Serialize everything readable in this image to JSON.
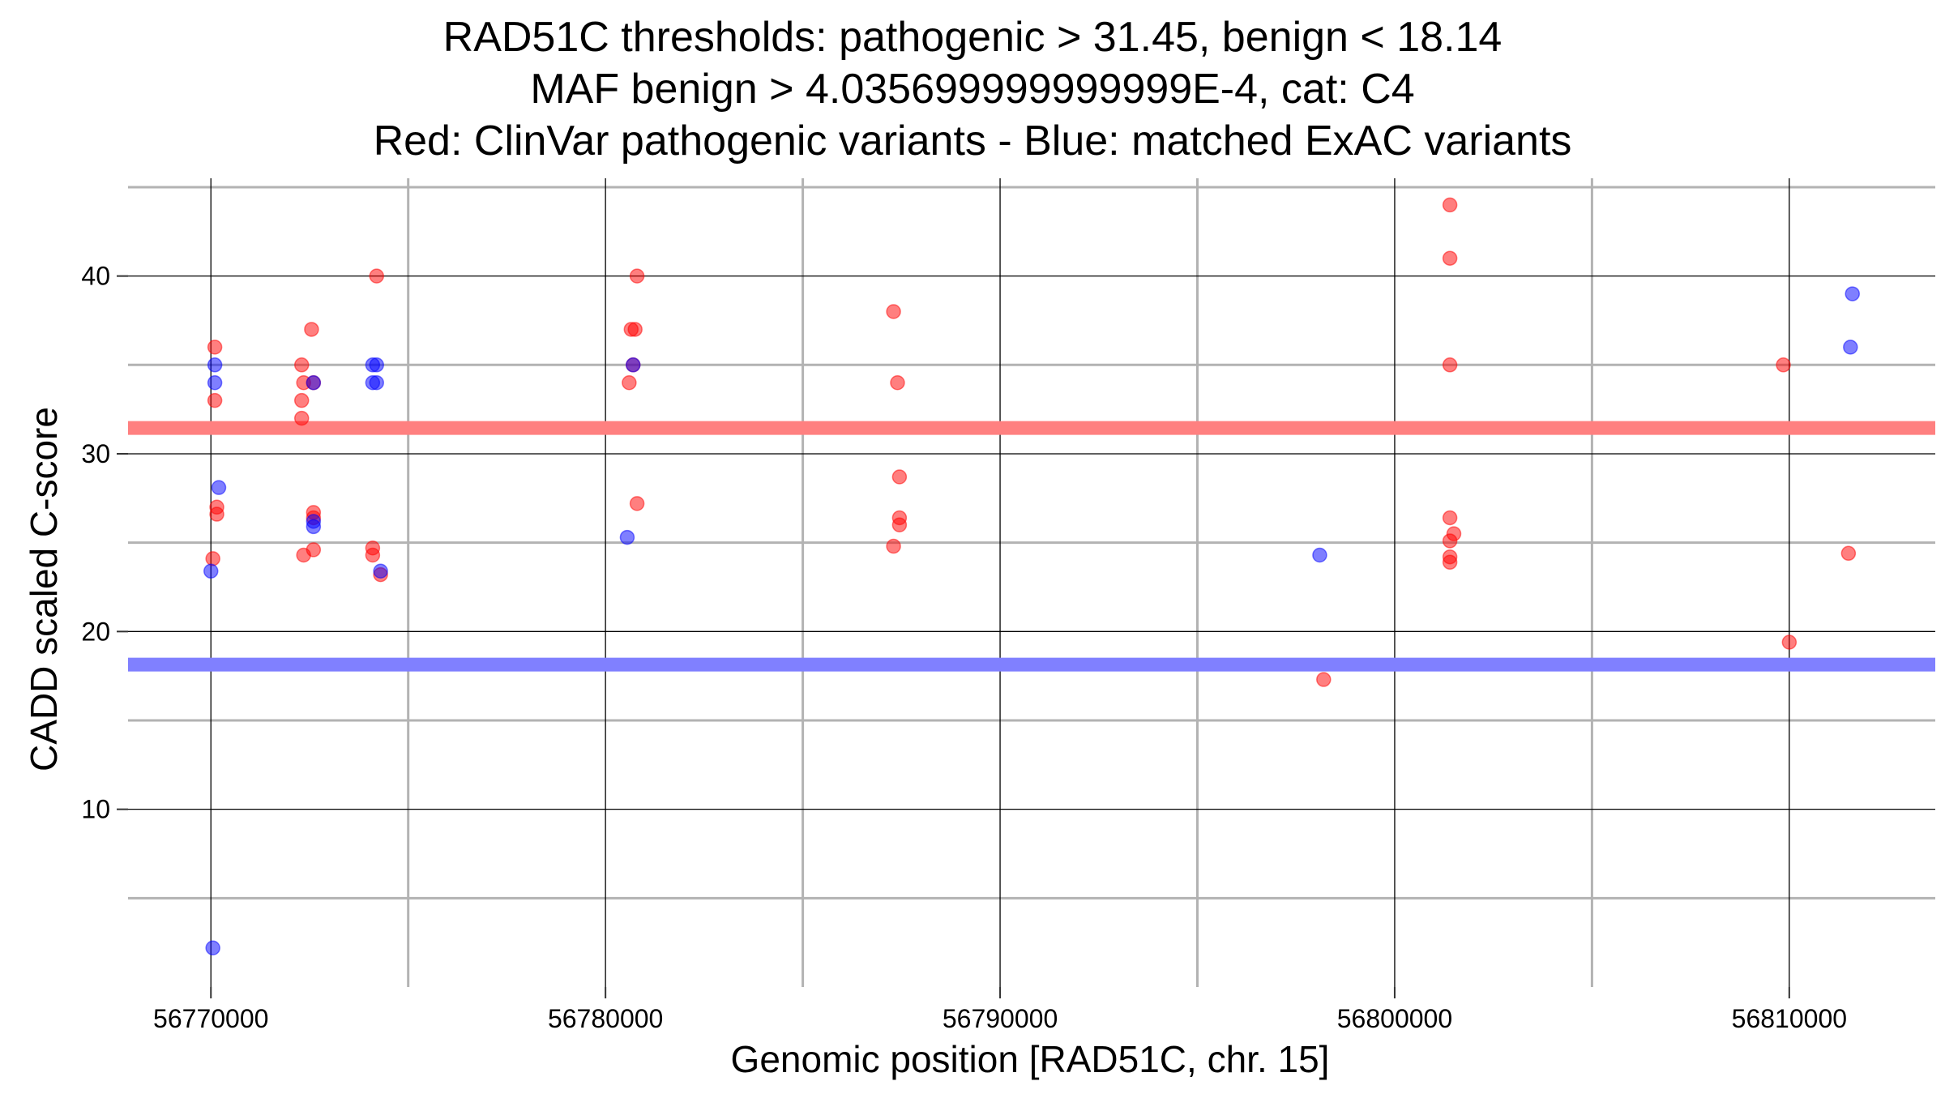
{
  "chart_data": {
    "type": "scatter",
    "title_lines": [
      "RAD51C thresholds: pathogenic > 31.45, benign < 18.14",
      "MAF benign > 4.035699999999999E-4, cat: C4",
      "Red: ClinVar pathogenic variants - Blue: matched ExAC variants"
    ],
    "xlabel": "Genomic position [RAD51C, chr. 15]",
    "ylabel": "CADD scaled C-score",
    "xlim": [
      56767900,
      56813700
    ],
    "ylim": [
      0,
      45.5
    ],
    "x_major_ticks": [
      56770000,
      56780000,
      56790000,
      56800000,
      56810000
    ],
    "x_minor_ticks": [
      56775000,
      56785000,
      56795000,
      56805000
    ],
    "y_major_ticks": [
      10,
      20,
      30,
      40
    ],
    "y_minor_ticks": [
      5,
      15,
      25,
      35,
      45
    ],
    "grid": true,
    "thresholds": [
      {
        "name": "pathogenic",
        "value": 31.45,
        "color": "#ff8080"
      },
      {
        "name": "benign",
        "value": 18.14,
        "color": "#8080ff"
      }
    ],
    "series": [
      {
        "color": "#ff0000",
        "points": [
          [
            56770100,
            36
          ],
          [
            56770100,
            33
          ],
          [
            56770150,
            27
          ],
          [
            56770150,
            26.6
          ],
          [
            56770050,
            24.1
          ],
          [
            56772300,
            35
          ],
          [
            56772350,
            34
          ],
          [
            56772300,
            33
          ],
          [
            56772300,
            32
          ],
          [
            56772350,
            24.3
          ],
          [
            56772550,
            37
          ],
          [
            56772600,
            34
          ],
          [
            56772600,
            26.7
          ],
          [
            56772600,
            26.4
          ],
          [
            56772600,
            24.6
          ],
          [
            56774200,
            40
          ],
          [
            56774100,
            24.7
          ],
          [
            56774100,
            24.3
          ],
          [
            56774300,
            23.2
          ],
          [
            56780800,
            40
          ],
          [
            56780650,
            37
          ],
          [
            56780750,
            37
          ],
          [
            56780700,
            35
          ],
          [
            56780600,
            34
          ],
          [
            56780800,
            27.2
          ],
          [
            56787300,
            38
          ],
          [
            56787400,
            34
          ],
          [
            56787450,
            28.7
          ],
          [
            56787450,
            26.4
          ],
          [
            56787450,
            26
          ],
          [
            56787300,
            24.8
          ],
          [
            56801400,
            44
          ],
          [
            56801400,
            41
          ],
          [
            56801400,
            35
          ],
          [
            56801400,
            26.4
          ],
          [
            56801500,
            25.5
          ],
          [
            56801400,
            25.1
          ],
          [
            56801400,
            24.2
          ],
          [
            56801400,
            23.9
          ],
          [
            56809850,
            35
          ],
          [
            56810000,
            19.4
          ],
          [
            56811500,
            24.4
          ],
          [
            56798200,
            17.3
          ]
        ]
      },
      {
        "color": "#0000ff",
        "points": [
          [
            56770100,
            35
          ],
          [
            56770100,
            34
          ],
          [
            56770200,
            28.1
          ],
          [
            56770000,
            23.4
          ],
          [
            56770050,
            2.2
          ],
          [
            56772600,
            34
          ],
          [
            56772600,
            26.2
          ],
          [
            56772600,
            25.9
          ],
          [
            56774100,
            35
          ],
          [
            56774200,
            35
          ],
          [
            56774100,
            34
          ],
          [
            56774200,
            34
          ],
          [
            56774300,
            23.4
          ],
          [
            56780700,
            35
          ],
          [
            56780550,
            25.3
          ],
          [
            56798100,
            24.3
          ],
          [
            56811600,
            39
          ],
          [
            56811550,
            36
          ]
        ]
      }
    ]
  }
}
